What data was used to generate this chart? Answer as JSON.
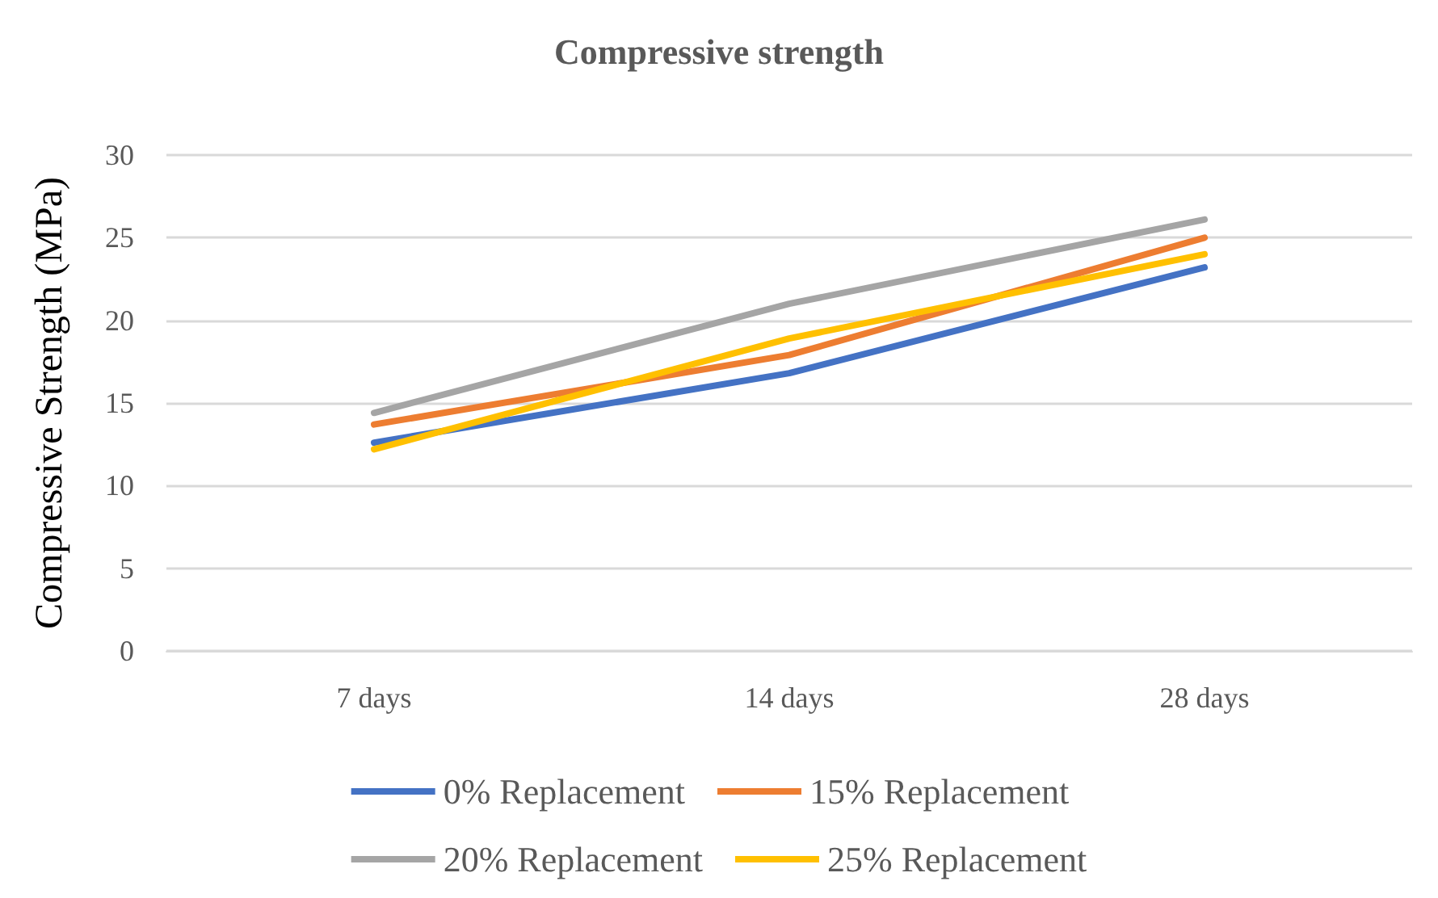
{
  "chart_data": {
    "type": "line",
    "title": "Compressive strength",
    "ylabel": "Compressive Strength (MPa)",
    "categories": [
      "7 days",
      "14 days",
      "28 days"
    ],
    "series": [
      {
        "name": "0% Replacement",
        "color": "#4472c4",
        "values": [
          12.6,
          16.8,
          23.2
        ]
      },
      {
        "name": "15% Replacement",
        "color": "#ed7d31",
        "values": [
          13.7,
          17.9,
          25.0
        ]
      },
      {
        "name": "20% Replacement",
        "color": "#a5a5a5",
        "values": [
          14.4,
          21.0,
          26.1
        ]
      },
      {
        "name": "25% Replacement",
        "color": "#ffc000",
        "values": [
          12.2,
          18.9,
          24.0
        ]
      }
    ],
    "ylim": [
      0,
      30
    ],
    "yticks": [
      0,
      5,
      10,
      15,
      20,
      25,
      30
    ],
    "grid": "y",
    "legend": "bottom",
    "marker": "none",
    "line_style": "solid"
  }
}
